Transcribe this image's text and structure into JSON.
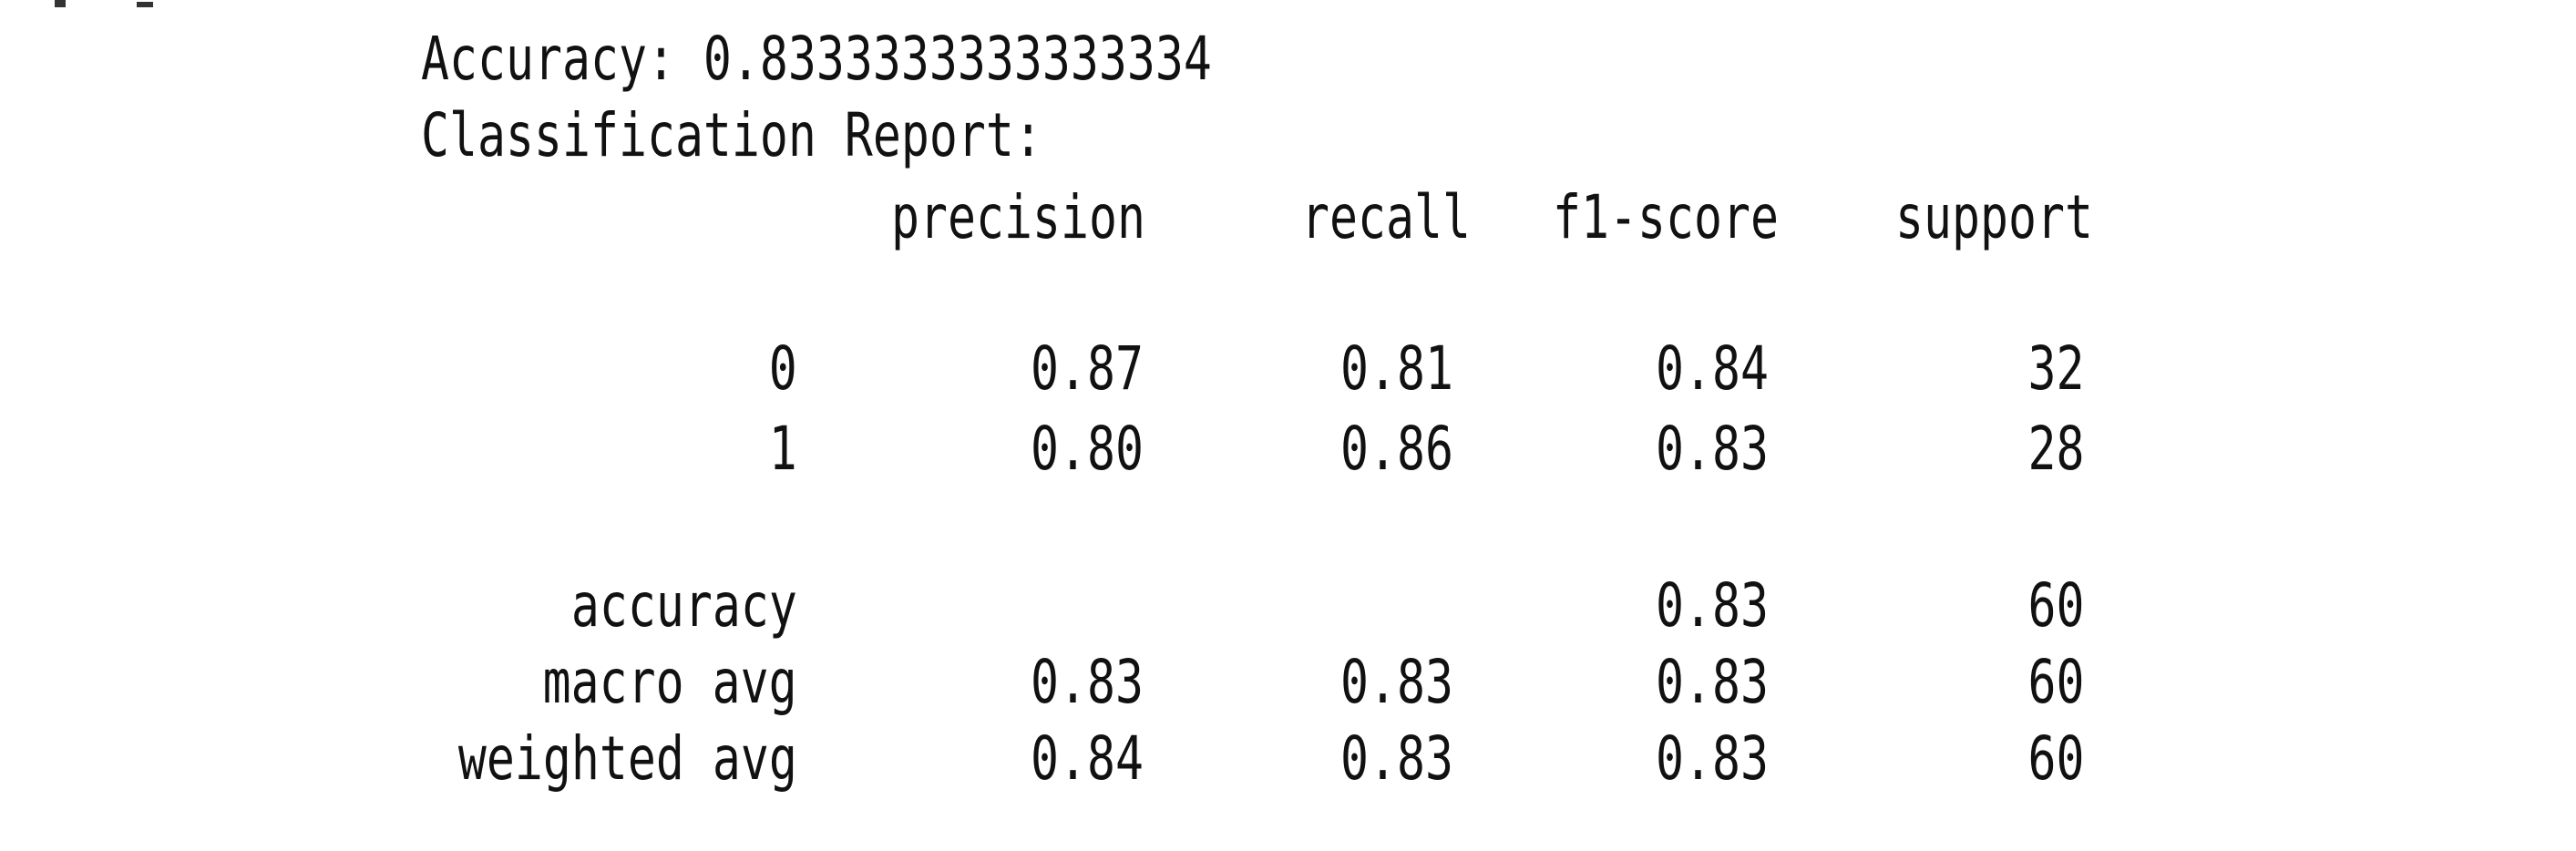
{
  "output": {
    "accuracy_line": "Accuracy: 0.8333333333333334",
    "report_heading": "Classification Report:",
    "columns": [
      "precision",
      "recall",
      "f1-score",
      "support"
    ],
    "rows": [
      {
        "label": "0",
        "precision": "0.87",
        "recall": "0.81",
        "f1": "0.84",
        "support": "32"
      },
      {
        "label": "1",
        "precision": "0.80",
        "recall": "0.86",
        "f1": "0.83",
        "support": "28"
      },
      {
        "label": "accuracy",
        "precision": "",
        "recall": "",
        "f1": "0.83",
        "support": "60"
      },
      {
        "label": "macro avg",
        "precision": "0.83",
        "recall": "0.83",
        "f1": "0.83",
        "support": "60"
      },
      {
        "label": "weighted avg",
        "precision": "0.84",
        "recall": "0.83",
        "f1": "0.83",
        "support": "60"
      }
    ]
  }
}
